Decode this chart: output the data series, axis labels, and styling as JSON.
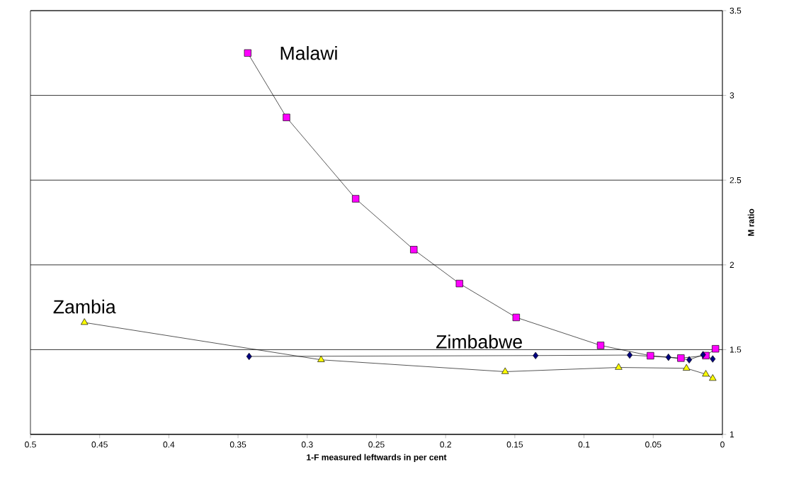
{
  "chart_data": {
    "type": "line",
    "xlabel": "1-F measured leftwards in per cent",
    "ylabel": "M ratio",
    "xlim": [
      0.5,
      0
    ],
    "xticks": [
      0.5,
      0.45,
      0.4,
      0.35,
      0.3,
      0.25,
      0.2,
      0.15,
      0.1,
      0.05,
      0
    ],
    "ylim": [
      1,
      3.5
    ],
    "yticks": [
      1,
      1.5,
      2,
      2.5,
      3,
      3.5
    ],
    "grid": "y",
    "series": [
      {
        "name": "Malawi",
        "color": "#ff00ff",
        "marker": "square",
        "x": [
          0.343,
          0.315,
          0.265,
          0.223,
          0.19,
          0.149,
          0.088,
          0.052,
          0.03,
          0.012,
          0.005
        ],
        "values": [
          3.25,
          2.87,
          2.39,
          2.09,
          1.89,
          1.69,
          1.525,
          1.464,
          1.45,
          1.465,
          1.505
        ]
      },
      {
        "name": "Zimbabwe",
        "color": "#000080",
        "marker": "diamond",
        "x": [
          0.342,
          0.135,
          0.067,
          0.039,
          0.024,
          0.014,
          0.007
        ],
        "values": [
          1.46,
          1.465,
          1.468,
          1.455,
          1.44,
          1.47,
          1.445
        ]
      },
      {
        "name": "Zambia",
        "color": "#ffff00",
        "marker": "triangle",
        "x": [
          0.461,
          0.29,
          0.157,
          0.075,
          0.026,
          0.012,
          0.007
        ],
        "values": [
          1.66,
          1.44,
          1.37,
          1.395,
          1.39,
          1.355,
          1.33
        ]
      }
    ]
  }
}
